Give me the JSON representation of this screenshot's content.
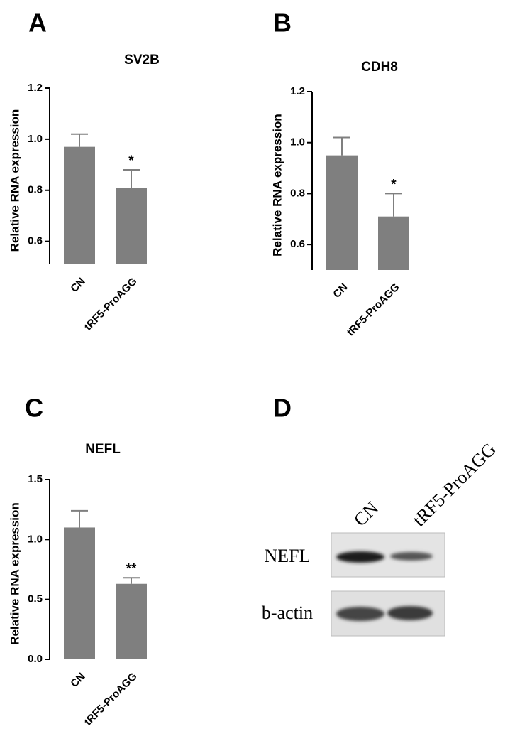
{
  "chart_data": [
    {
      "type": "bar",
      "panel": "A",
      "title": "SV2B",
      "y_label": "Relative RNA expression",
      "categories": [
        "CN",
        "tRF5-ProAGG"
      ],
      "values": [
        0.97,
        0.81
      ],
      "errors": [
        0.05,
        0.07
      ],
      "annotations": [
        null,
        "*"
      ],
      "color": "#7f7f7f",
      "ylim": [
        0.51,
        1.2
      ],
      "yticks": [
        0.6,
        0.8,
        {
          "value": 1,
          "label": "1.0"
        },
        1.2
      ]
    },
    {
      "type": "bar",
      "panel": "B",
      "title": "CDH8",
      "y_label": "Relative RNA expression",
      "categories": [
        "CN",
        "tRF5-ProAGG"
      ],
      "values": [
        0.95,
        0.71
      ],
      "errors": [
        0.07,
        0.09
      ],
      "annotations": [
        null,
        "*"
      ],
      "color": "#7f7f7f",
      "ylim": [
        0.5,
        1.2
      ],
      "yticks": [
        0.6,
        0.8,
        {
          "value": 1,
          "label": "1.0"
        },
        1.2
      ]
    },
    {
      "type": "bar",
      "panel": "C",
      "title": "NEFL",
      "y_label": "Relative RNA expression",
      "categories": [
        "CN",
        "tRF5-ProAGG"
      ],
      "values": [
        1.1,
        0.63
      ],
      "errors": [
        0.14,
        0.05
      ],
      "annotations": [
        null,
        "**"
      ],
      "color": "#7f7f7f",
      "ylim": [
        0,
        1.5
      ],
      "yticks": [
        {
          "value": 0,
          "label": "0.0"
        },
        0.5,
        {
          "value": 1,
          "label": "1.0"
        },
        1.5
      ]
    }
  ],
  "blot": {
    "panel": "D",
    "columns": [
      "CN",
      "tRF5-ProAGG"
    ],
    "rows": [
      "NEFL",
      "b-actin"
    ]
  }
}
